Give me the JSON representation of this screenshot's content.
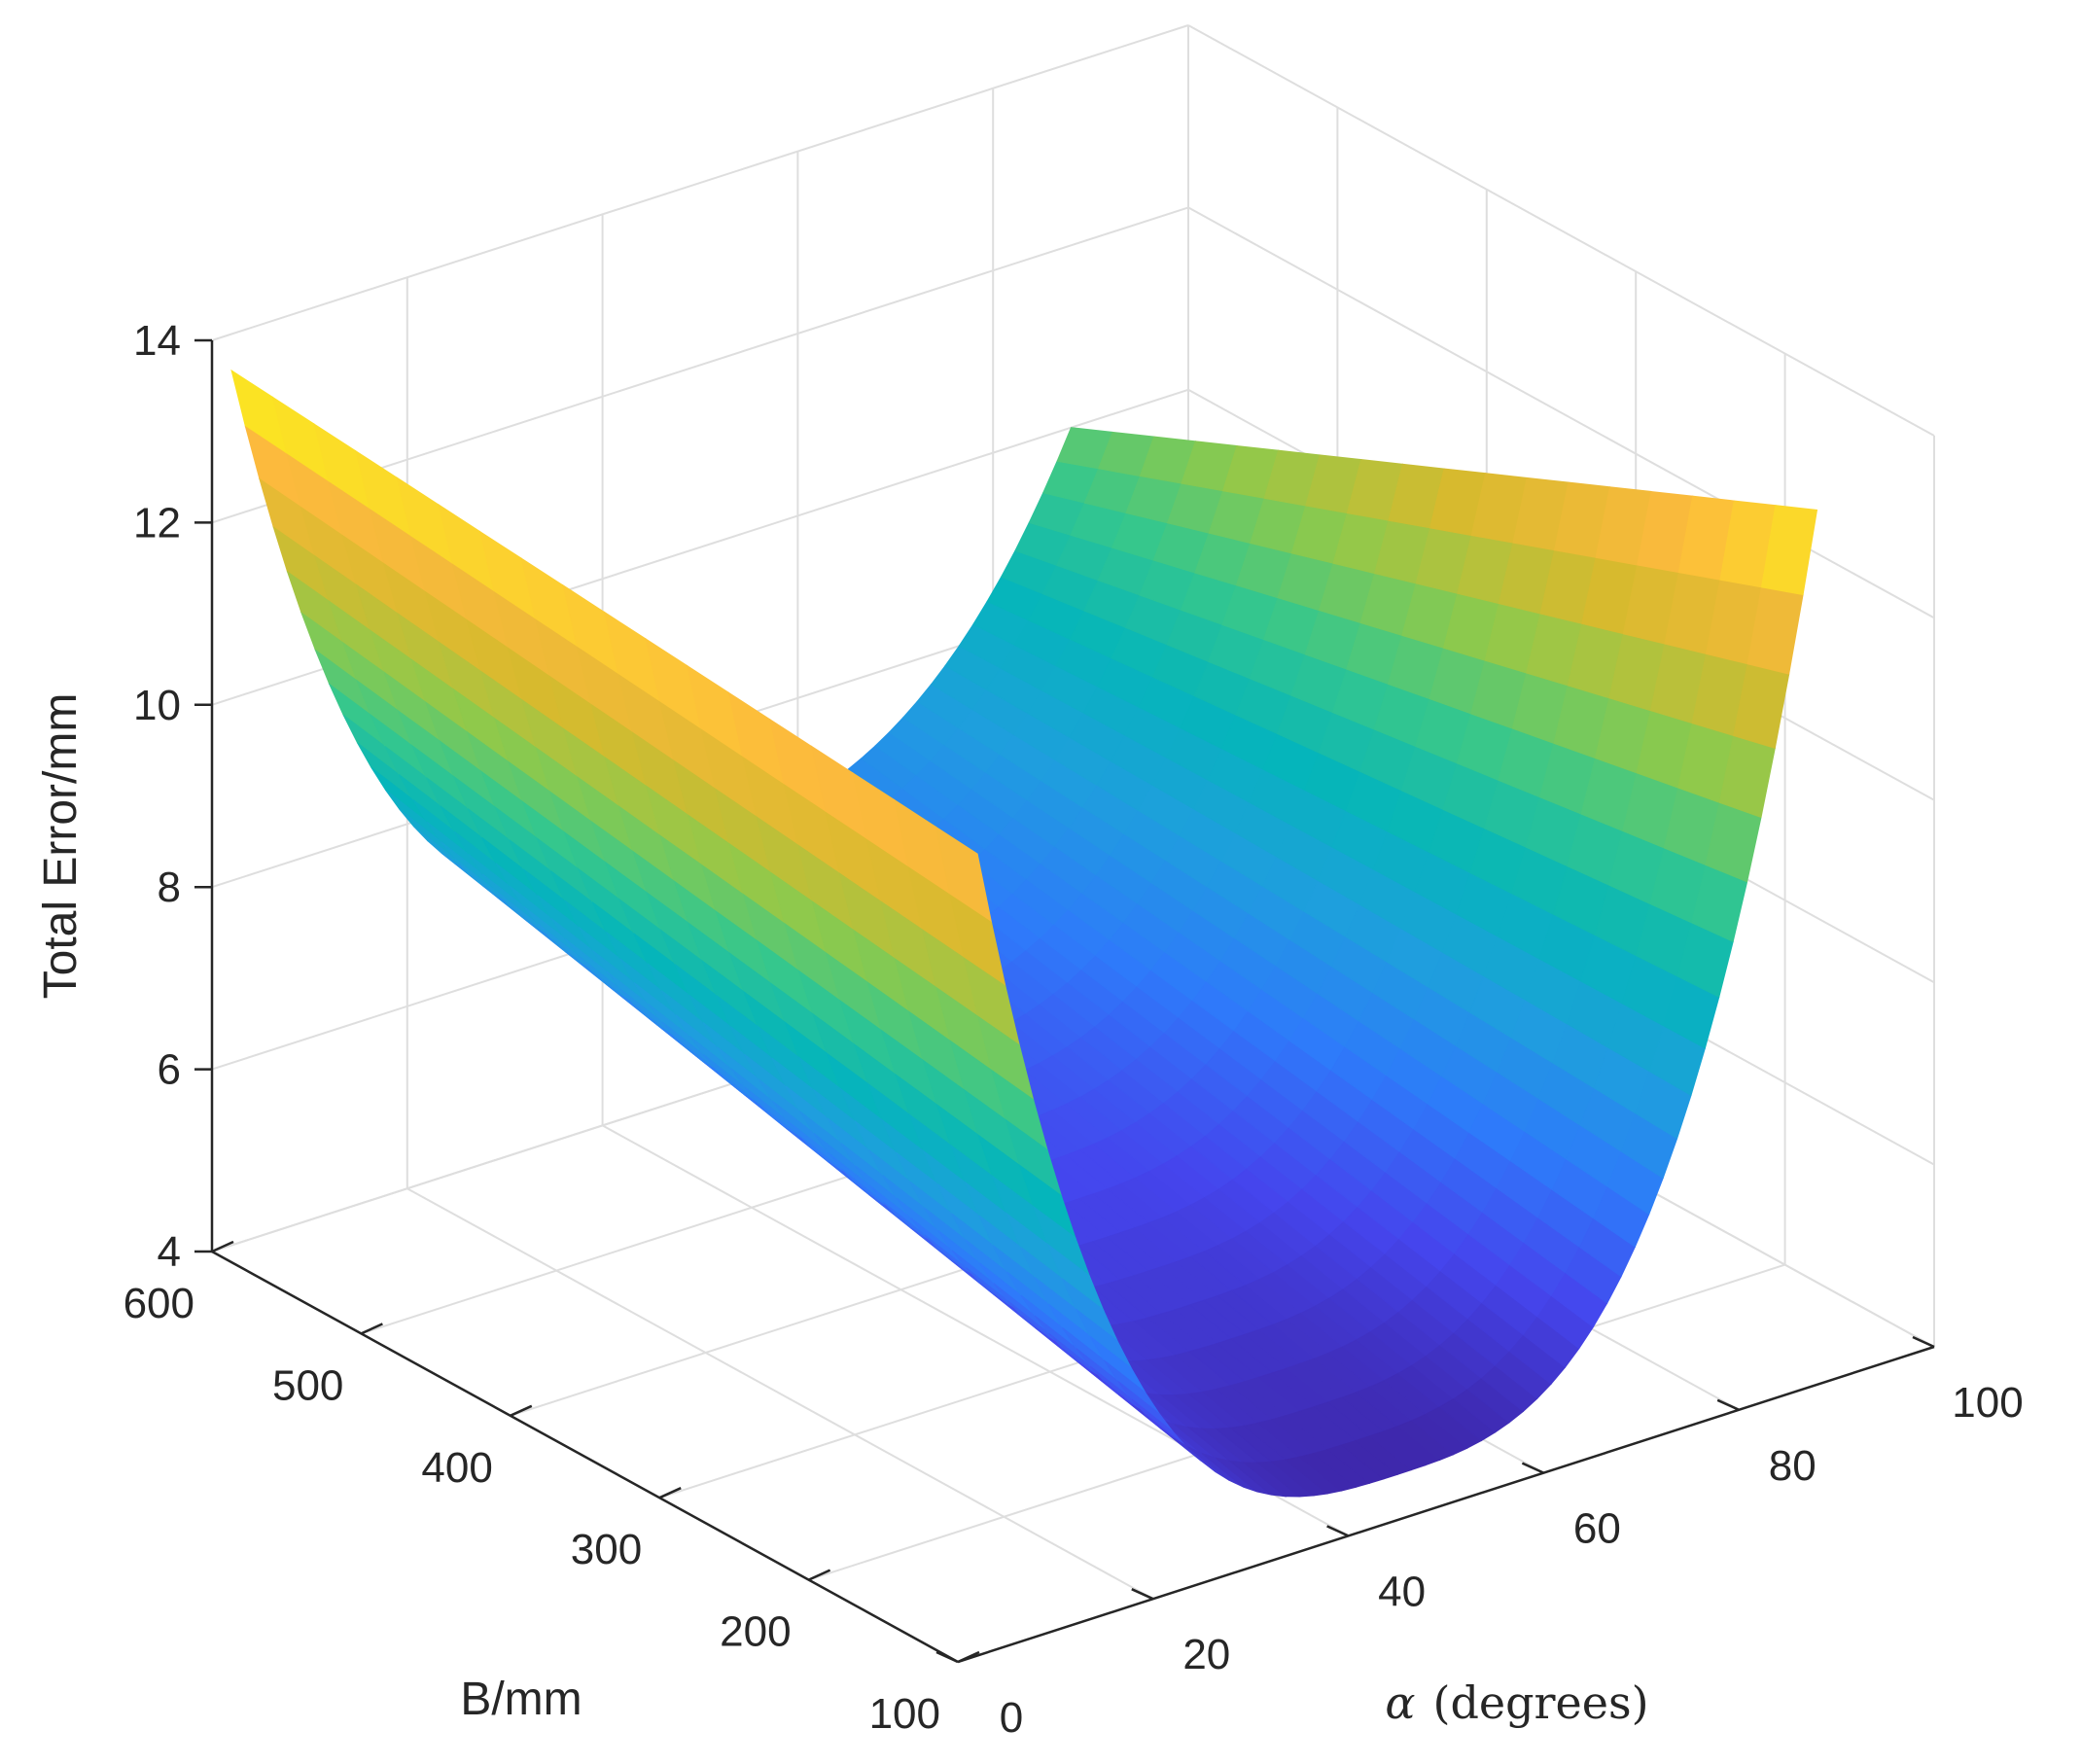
{
  "chart_data": {
    "type": "surface",
    "title": "",
    "xlabel": "α (degrees)",
    "xlabel_symbol": "α",
    "xlabel_text": "(degrees)",
    "ylabel": "B/mm",
    "zlabel": "Total Error/mm",
    "xlim": [
      0,
      100
    ],
    "ylim": [
      100,
      600
    ],
    "zlim": [
      4,
      14
    ],
    "x_tick_labels": [
      "0",
      "20",
      "40",
      "60",
      "80",
      "100"
    ],
    "y_tick_labels": [
      "100",
      "200",
      "300",
      "400",
      "500",
      "600"
    ],
    "z_tick_labels": [
      "4",
      "6",
      "8",
      "10",
      "12",
      "14"
    ],
    "grid": true,
    "colormap": "parula",
    "surface": {
      "alpha_range": [
        2,
        88
      ],
      "B_range": [
        100,
        600
      ],
      "description_values": [
        {
          "alpha": 2,
          "B": 600,
          "error": 13.6
        },
        {
          "alpha": 2,
          "B": 100,
          "error": 12.8
        },
        {
          "alpha": 88,
          "B": 600,
          "error": 10.0
        },
        {
          "alpha": 88,
          "B": 100,
          "error": 13.6
        },
        {
          "alpha": 45,
          "B": 100,
          "error": 4.5
        },
        {
          "alpha": 45,
          "B": 600,
          "error": 6.7
        }
      ]
    }
  }
}
